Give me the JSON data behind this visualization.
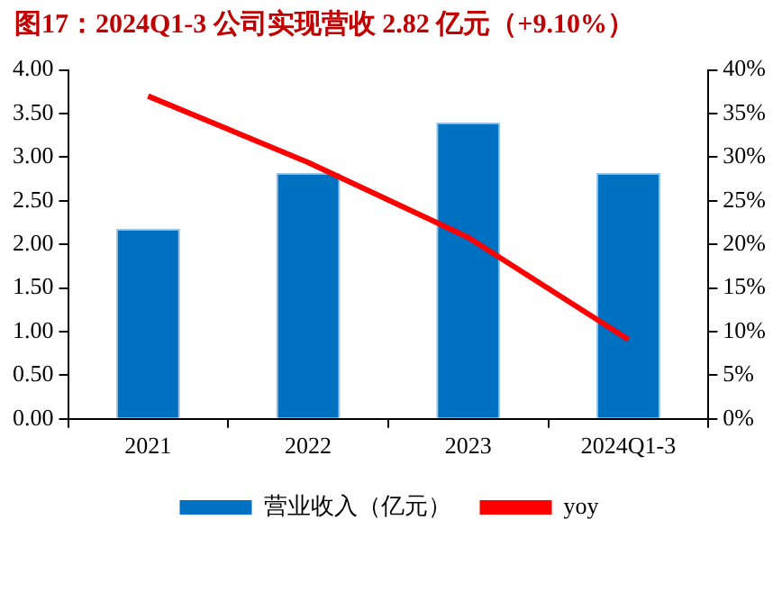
{
  "chart_data": {
    "type": "bar",
    "title": "图17：2024Q1-3 公司实现营收 2.82 亿元（+9.10%）",
    "categories": [
      "2021",
      "2022",
      "2023",
      "2024Q1-3"
    ],
    "series": [
      {
        "name": "营业收入（亿元）",
        "color": "#0070c0",
        "values": [
          2.18,
          2.82,
          3.4,
          2.82
        ]
      },
      {
        "name": "yoy",
        "type": "line",
        "axis": "y2",
        "color": "#ff0000",
        "values": [
          37.0,
          29.4,
          20.8,
          9.1
        ]
      }
    ],
    "ylim": [
      0,
      4
    ],
    "yticks": [
      {
        "value": 0,
        "label": "0.00"
      },
      {
        "value": 0.5,
        "label": "0.50"
      },
      {
        "value": 1,
        "label": "1.00"
      },
      {
        "value": 1.5,
        "label": "1.50"
      },
      {
        "value": 2,
        "label": "2.00"
      },
      {
        "value": 2.5,
        "label": "2.50"
      },
      {
        "value": 3,
        "label": "3.00"
      },
      {
        "value": 3.5,
        "label": "3.50"
      },
      {
        "value": 4,
        "label": "4.00"
      }
    ],
    "y2lim": [
      0,
      40
    ],
    "y2ticks": [
      {
        "value": 0,
        "label": "0%"
      },
      {
        "value": 5,
        "label": "5%"
      },
      {
        "value": 10,
        "label": "10%"
      },
      {
        "value": 15,
        "label": "15%"
      },
      {
        "value": 20,
        "label": "20%"
      },
      {
        "value": 25,
        "label": "25%"
      },
      {
        "value": 30,
        "label": "30%"
      },
      {
        "value": 35,
        "label": "35%"
      },
      {
        "value": 40,
        "label": "40%"
      }
    ],
    "grid": false,
    "legend": "bottom",
    "marker": "none",
    "line_style": "solid"
  }
}
